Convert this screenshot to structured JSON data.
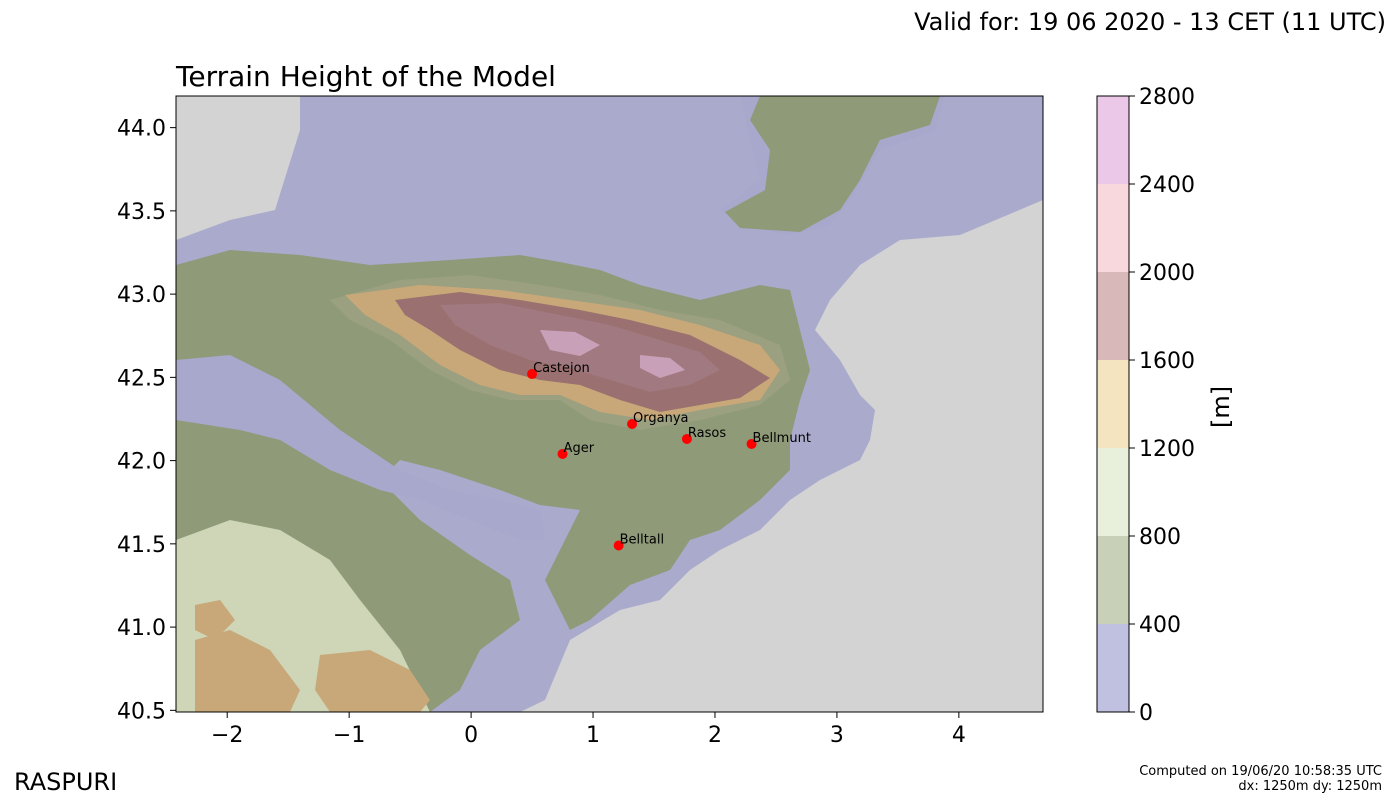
{
  "header": {
    "valid_for": "Valid for: 19 06 2020 - 13 CET (11 UTC)",
    "title": "Terrain Height of the Model"
  },
  "footer": {
    "brand": "RASPURI",
    "computed_line": "Computed on 19/06/20 10:58:35 UTC",
    "resolution_line": "dx: 1250m dy: 1250m"
  },
  "colors": {
    "sea": "#d3d3d3",
    "band_0_400": "#c0c0e0",
    "band_400_800": "#c8d0b8",
    "band_800_1200": "#e8f0dc",
    "band_1200_1600": "#f5e4c0",
    "band_1600_2000": "#d8b8b8",
    "band_2000_2400": "#f8d8dc",
    "band_2400_2800": "#ecc8e8",
    "marker": "#ff0000"
  },
  "chart_data": {
    "type": "map",
    "title": "Terrain Height of the Model",
    "x_ticks": [
      "−2",
      "−1",
      "0",
      "1",
      "2",
      "3",
      "4"
    ],
    "x_tick_values": [
      -2,
      -1,
      0,
      1,
      2,
      3,
      4
    ],
    "y_ticks": [
      "40.5",
      "41.0",
      "41.5",
      "42.0",
      "42.5",
      "43.0",
      "43.5",
      "44.0"
    ],
    "y_tick_values": [
      40.5,
      41.0,
      41.5,
      42.0,
      42.5,
      43.0,
      43.5,
      44.0
    ],
    "xlim": [
      -2.42,
      4.69
    ],
    "ylim": [
      40.49,
      44.19
    ],
    "grid": false,
    "colorbar": {
      "label": "[m]",
      "levels": [
        0,
        400,
        800,
        1200,
        1600,
        2000,
        2400,
        2800
      ],
      "tick_labels": [
        "0",
        "400",
        "800",
        "1200",
        "1600",
        "2000",
        "2400",
        "2800"
      ]
    },
    "stations": [
      {
        "name": "Castejon",
        "lon": 0.5,
        "lat": 42.52
      },
      {
        "name": "Organya",
        "lon": 1.32,
        "lat": 42.22
      },
      {
        "name": "Rasos",
        "lon": 1.77,
        "lat": 42.13
      },
      {
        "name": "Bellmunt",
        "lon": 2.3,
        "lat": 42.1
      },
      {
        "name": "Ager",
        "lon": 0.75,
        "lat": 42.04
      },
      {
        "name": "Belltall",
        "lon": 1.21,
        "lat": 41.49
      }
    ]
  }
}
